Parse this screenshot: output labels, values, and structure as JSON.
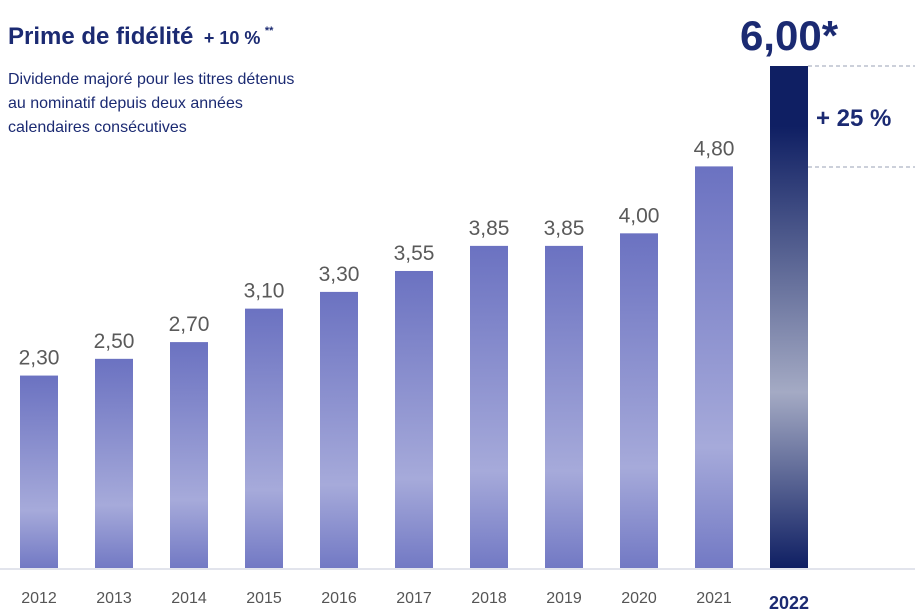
{
  "chart_data": {
    "type": "bar",
    "title": "Prime de fidélité",
    "title_bonus": "+ 10 %",
    "title_bonus_mark": "**",
    "subtitle": [
      "Dividende majoré pour les titres détenus",
      "au nominatif depuis deux années",
      "calendaires consécutives"
    ],
    "annotation": "+ 25 %",
    "categories": [
      "2012",
      "2013",
      "2014",
      "2015",
      "2016",
      "2017",
      "2018",
      "2019",
      "2020",
      "2021",
      "2022"
    ],
    "values": [
      2.3,
      2.5,
      2.7,
      3.1,
      3.3,
      3.55,
      3.85,
      3.85,
      4.0,
      4.8,
      6.0
    ],
    "value_labels": [
      "2,30",
      "2,50",
      "2,70",
      "3,10",
      "3,30",
      "3,55",
      "3,85",
      "3,85",
      "4,00",
      "4,80",
      "6,00*"
    ],
    "colors": [
      "#6b72c1",
      "#6b72c1",
      "#6b72c1",
      "#6b72c1",
      "#6b72c1",
      "#6b72c1",
      "#6b72c1",
      "#6b72c1",
      "#6b72c1",
      "#6b72c1",
      "#0f1f63"
    ]
  }
}
